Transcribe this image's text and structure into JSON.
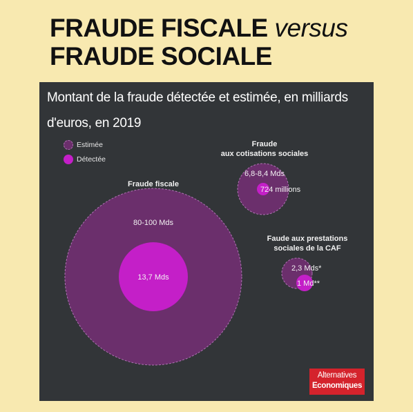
{
  "headline": {
    "line1_bold": "FRAUDE FISCALE",
    "line1_italic": "versus",
    "line2_bold": "FRAUDE SOCIALE"
  },
  "panel": {
    "title": "Montant de la fraude détectée et estimée, en milliards d'euros, en 2019"
  },
  "legend": {
    "estimated": "Estimée",
    "detected": "Détectée"
  },
  "colors": {
    "page_background": "#f8e9b0",
    "panel_background": "#323538",
    "estimated": "#6b2f6c",
    "detected": "#c41fc8",
    "logo_background": "#d4232c"
  },
  "chart_data": {
    "type": "bubble",
    "title": "Montant de la fraude détectée et estimée, en milliards d'euros, en 2019",
    "series": [
      {
        "name": "Estimée"
      },
      {
        "name": "Détectée"
      }
    ],
    "groups": [
      {
        "name": "Fraude fiscale",
        "estimated_label": "80-100 Mds",
        "estimated_value": 90,
        "detected_label": "13,7 Mds",
        "detected_value": 13.7
      },
      {
        "name": "Fraude aux cotisations sociales",
        "name_line1": "Fraude",
        "name_line2": "aux cotisations sociales",
        "estimated_label": "6,8-8,4 Mds",
        "estimated_value": 7.6,
        "detected_label": "724 millions",
        "detected_value": 0.724
      },
      {
        "name": "Faude aux prestations sociales de la CAF",
        "name_line1": "Faude aux prestations",
        "name_line2": "sociales de la CAF",
        "estimated_label": "2,3 Mds*",
        "estimated_value": 2.3,
        "detected_label": "1 Md**",
        "detected_value": 1
      }
    ]
  },
  "logo": {
    "line1": "Alternatives",
    "line2": "Economiques"
  }
}
